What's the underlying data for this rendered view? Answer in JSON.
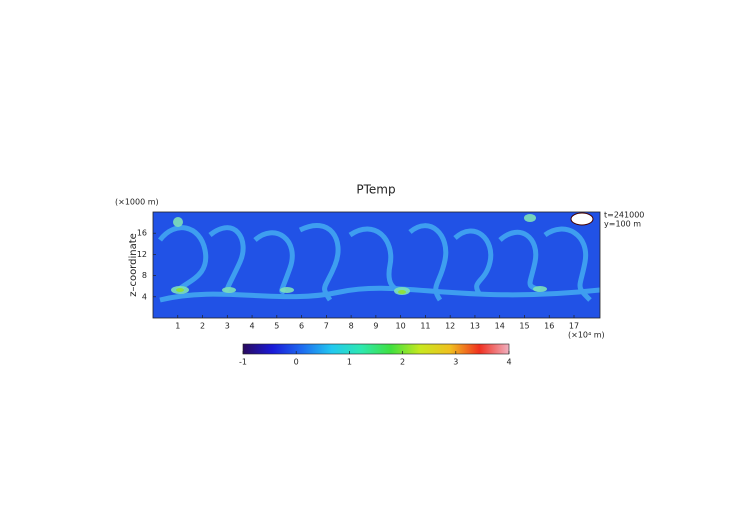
{
  "chart_data": {
    "type": "heatmap",
    "title": "PTemp",
    "y_label": "z–coordinate",
    "y_unit": "(×1000 m)",
    "x_unit": "(×10⁴ m)",
    "annotations": [
      "t=241000",
      "y=100 m"
    ],
    "xlim": [
      0,
      18.05
    ],
    "xticks": [
      1,
      2,
      3,
      4,
      5,
      6,
      7,
      8,
      9,
      10,
      11,
      12,
      13,
      14,
      15,
      16,
      17
    ],
    "ylim": [
      0,
      20
    ],
    "yticks": [
      4,
      8,
      12,
      16
    ],
    "colorbar": {
      "lim": [
        -1,
        4
      ],
      "ticks": [
        -1,
        0,
        1,
        2,
        3,
        4
      ],
      "colors": [
        "#2a0a5e",
        "#1a1ad8",
        "#1e6cf0",
        "#22c8f0",
        "#2ee8b0",
        "#40e040",
        "#c8e820",
        "#f0c020",
        "#f03020",
        "#f0b0c0"
      ]
    }
  }
}
